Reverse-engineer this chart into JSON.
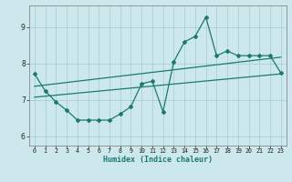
{
  "bg_color": "#cce8ec",
  "grid_color": "#aacfd4",
  "line_color": "#1a7a6e",
  "xlabel": "Humidex (Indice chaleur)",
  "xlim": [
    -0.5,
    23.5
  ],
  "ylim": [
    5.75,
    9.6
  ],
  "yticks": [
    6,
    7,
    8,
    9
  ],
  "xticks": [
    0,
    1,
    2,
    3,
    4,
    5,
    6,
    7,
    8,
    9,
    10,
    11,
    12,
    13,
    14,
    15,
    16,
    17,
    18,
    19,
    20,
    21,
    22,
    23
  ],
  "main_x": [
    0,
    1,
    2,
    3,
    4,
    5,
    6,
    7,
    8,
    9,
    10,
    11,
    12,
    13,
    14,
    15,
    16,
    17,
    18,
    19,
    20,
    21,
    22,
    23
  ],
  "main_y": [
    7.72,
    7.25,
    6.95,
    6.72,
    6.45,
    6.45,
    6.45,
    6.45,
    6.62,
    6.82,
    7.45,
    7.52,
    6.68,
    8.05,
    8.6,
    8.75,
    9.28,
    8.22,
    8.35,
    8.22,
    8.22,
    8.22,
    8.22,
    7.75
  ],
  "trend1_x": [
    0,
    23
  ],
  "trend1_y": [
    7.08,
    7.72
  ],
  "trend2_x": [
    0,
    23
  ],
  "trend2_y": [
    7.38,
    8.18
  ]
}
